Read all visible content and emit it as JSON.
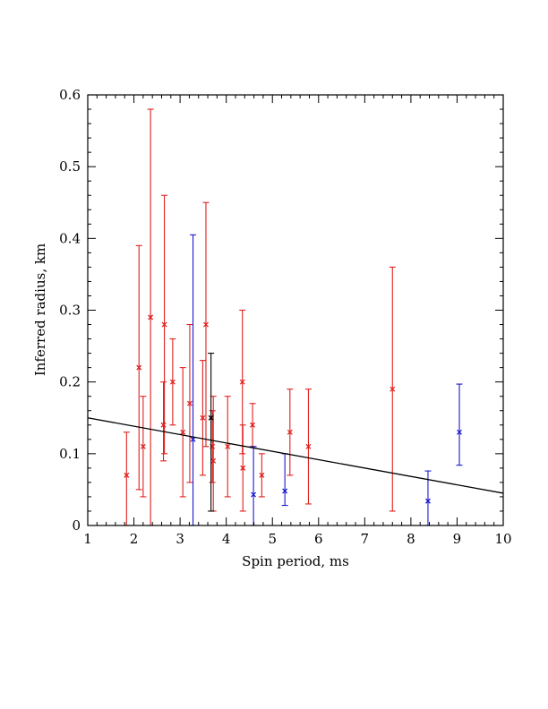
{
  "chart_data": {
    "type": "scatter",
    "title": "",
    "xlabel": "Spin period, ms",
    "ylabel": "Inferred radius, km",
    "xlim": [
      1,
      10
    ],
    "ylim": [
      0,
      0.6
    ],
    "xticks": [
      "1",
      "2",
      "3",
      "4",
      "5",
      "6",
      "7",
      "8",
      "9",
      "10"
    ],
    "yticks": [
      "0",
      "0.1",
      "0.2",
      "0.3",
      "0.4",
      "0.5",
      "0.6"
    ],
    "grid": false,
    "legend": "none",
    "colors": {
      "red": "#e0201e",
      "blue": "#1a1ad0",
      "black": "#000000"
    },
    "series": [
      {
        "color": "red",
        "points": [
          {
            "x": 1.84,
            "y": 0.07,
            "lo": 0.0,
            "hi": 0.13
          },
          {
            "x": 2.11,
            "y": 0.22,
            "lo": 0.05,
            "hi": 0.39
          },
          {
            "x": 2.2,
            "y": 0.11,
            "lo": 0.04,
            "hi": 0.18
          },
          {
            "x": 2.36,
            "y": 0.29,
            "lo": 0.0,
            "hi": 0.58
          },
          {
            "x": 2.64,
            "y": 0.14,
            "lo": 0.09,
            "hi": 0.2
          },
          {
            "x": 2.66,
            "y": 0.28,
            "lo": 0.1,
            "hi": 0.46
          },
          {
            "x": 2.84,
            "y": 0.2,
            "lo": 0.14,
            "hi": 0.26
          },
          {
            "x": 3.06,
            "y": 0.13,
            "lo": 0.04,
            "hi": 0.22
          },
          {
            "x": 3.21,
            "y": 0.17,
            "lo": 0.06,
            "hi": 0.28
          },
          {
            "x": 3.49,
            "y": 0.15,
            "lo": 0.07,
            "hi": 0.23
          },
          {
            "x": 3.56,
            "y": 0.28,
            "lo": 0.11,
            "hi": 0.45
          },
          {
            "x": 3.7,
            "y": 0.11,
            "lo": 0.06,
            "hi": 0.16
          },
          {
            "x": 3.72,
            "y": 0.09,
            "lo": 0.02,
            "hi": 0.18
          },
          {
            "x": 4.03,
            "y": 0.11,
            "lo": 0.04,
            "hi": 0.18
          },
          {
            "x": 4.35,
            "y": 0.2,
            "lo": 0.1,
            "hi": 0.3
          },
          {
            "x": 4.36,
            "y": 0.08,
            "lo": 0.02,
            "hi": 0.14
          },
          {
            "x": 4.57,
            "y": 0.14,
            "lo": 0.11,
            "hi": 0.17
          },
          {
            "x": 4.77,
            "y": 0.07,
            "lo": 0.04,
            "hi": 0.1
          },
          {
            "x": 5.38,
            "y": 0.13,
            "lo": 0.07,
            "hi": 0.19
          },
          {
            "x": 5.78,
            "y": 0.11,
            "lo": 0.03,
            "hi": 0.19
          },
          {
            "x": 7.6,
            "y": 0.19,
            "lo": 0.02,
            "hi": 0.36
          }
        ]
      },
      {
        "color": "blue",
        "points": [
          {
            "x": 3.28,
            "y": 0.12,
            "lo": 0.0,
            "hi": 0.405
          },
          {
            "x": 4.59,
            "y": 0.043,
            "lo": 0.0,
            "hi": 0.11
          },
          {
            "x": 5.27,
            "y": 0.048,
            "lo": 0.028,
            "hi": 0.1
          },
          {
            "x": 8.37,
            "y": 0.034,
            "lo": 0.0,
            "hi": 0.076
          },
          {
            "x": 9.05,
            "y": 0.13,
            "lo": 0.084,
            "hi": 0.197
          }
        ]
      },
      {
        "color": "black",
        "points": [
          {
            "x": 3.67,
            "y": 0.15,
            "lo": 0.02,
            "hi": 0.24
          }
        ]
      }
    ],
    "fit_line": {
      "x": [
        1,
        10
      ],
      "y": [
        0.15,
        0.045
      ]
    }
  }
}
